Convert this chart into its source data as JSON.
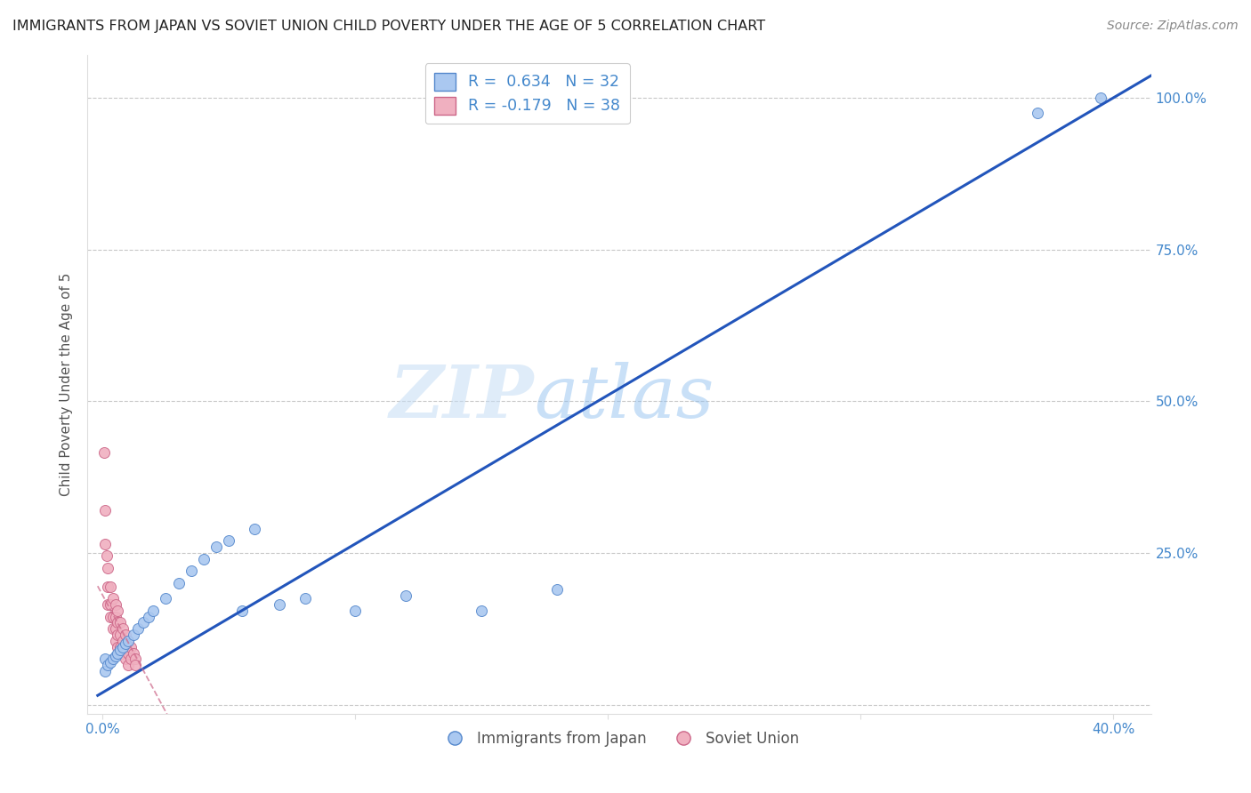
{
  "title": "IMMIGRANTS FROM JAPAN VS SOVIET UNION CHILD POVERTY UNDER THE AGE OF 5 CORRELATION CHART",
  "source": "Source: ZipAtlas.com",
  "ylabel": "Child Poverty Under the Age of 5",
  "background_color": "#ffffff",
  "grid_color": "#c8c8c8",
  "japan_color": "#aac8f0",
  "japan_edge_color": "#5588cc",
  "soviet_color": "#f0b0c0",
  "soviet_edge_color": "#cc6688",
  "line_color": "#2255bb",
  "soviet_line_color": "#cc6688",
  "legend_japan_label": "Immigrants from Japan",
  "legend_soviet_label": "Soviet Union",
  "japan_R": "0.634",
  "japan_N": "32",
  "soviet_R": "-0.179",
  "soviet_N": "38",
  "stat_color": "#4488cc",
  "watermark_zip": "ZIP",
  "watermark_atlas": "atlas",
  "title_fontsize": 11.5,
  "source_fontsize": 10,
  "label_fontsize": 11,
  "tick_fontsize": 11,
  "marker_size": 75,
  "japan_x": [
    0.001,
    0.001,
    0.002,
    0.003,
    0.004,
    0.005,
    0.006,
    0.007,
    0.008,
    0.009,
    0.01,
    0.012,
    0.014,
    0.016,
    0.018,
    0.02,
    0.025,
    0.03,
    0.035,
    0.04,
    0.045,
    0.05,
    0.055,
    0.06,
    0.07,
    0.08,
    0.1,
    0.12,
    0.15,
    0.18,
    0.37,
    0.395
  ],
  "japan_y": [
    0.055,
    0.075,
    0.065,
    0.07,
    0.075,
    0.08,
    0.085,
    0.09,
    0.095,
    0.1,
    0.105,
    0.115,
    0.125,
    0.135,
    0.145,
    0.155,
    0.175,
    0.2,
    0.22,
    0.24,
    0.26,
    0.27,
    0.155,
    0.29,
    0.165,
    0.175,
    0.155,
    0.18,
    0.155,
    0.19,
    0.975,
    1.0
  ],
  "soviet_x": [
    0.0005,
    0.001,
    0.001,
    0.0015,
    0.002,
    0.002,
    0.002,
    0.003,
    0.003,
    0.003,
    0.004,
    0.004,
    0.004,
    0.005,
    0.005,
    0.005,
    0.005,
    0.006,
    0.006,
    0.006,
    0.006,
    0.007,
    0.007,
    0.007,
    0.008,
    0.008,
    0.008,
    0.009,
    0.009,
    0.009,
    0.01,
    0.01,
    0.01,
    0.011,
    0.011,
    0.012,
    0.013,
    0.013
  ],
  "soviet_y": [
    0.415,
    0.32,
    0.265,
    0.245,
    0.225,
    0.195,
    0.165,
    0.195,
    0.165,
    0.145,
    0.175,
    0.145,
    0.125,
    0.165,
    0.145,
    0.125,
    0.105,
    0.155,
    0.135,
    0.115,
    0.095,
    0.135,
    0.115,
    0.095,
    0.125,
    0.105,
    0.085,
    0.115,
    0.095,
    0.075,
    0.105,
    0.085,
    0.065,
    0.095,
    0.075,
    0.085,
    0.075,
    0.065
  ],
  "xlim": [
    -0.006,
    0.415
  ],
  "ylim": [
    -0.015,
    1.07
  ],
  "xtick_vals": [
    0.0,
    0.1,
    0.2,
    0.3,
    0.4
  ],
  "xtick_labels": [
    "0.0%",
    "",
    "",
    "",
    "40.0%"
  ],
  "ytick_vals": [
    0.0,
    0.25,
    0.5,
    0.75,
    1.0
  ],
  "ytick_right_labels": [
    "",
    "25.0%",
    "50.0%",
    "75.0%",
    "100.0%"
  ]
}
